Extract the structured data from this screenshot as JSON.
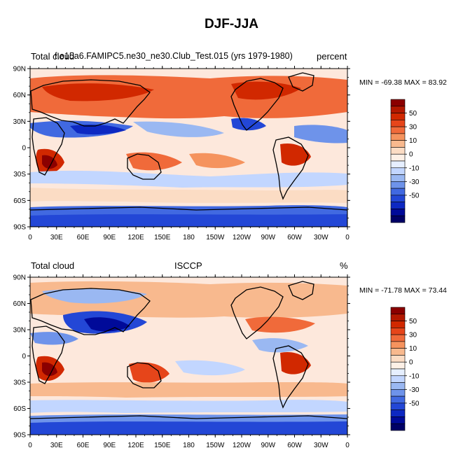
{
  "figure_title": "DJF-JJA",
  "panels": [
    {
      "left_label": "Total cloud",
      "center_label": "f.e15a6.FAMIPC5.ne30_ne30.Club_Test.015 (yrs 1979-1980)",
      "right_label": "percent",
      "min_max_text": "MIN = -69.38 MAX =  83.92"
    },
    {
      "left_label": "Total cloud",
      "center_label": "ISCCP",
      "right_label": "%",
      "min_max_text": "MIN = -71.78 MAX =  73.44"
    }
  ],
  "axes": {
    "lat_ticks": [
      "90N",
      "60N",
      "30N",
      "0",
      "30S",
      "60S",
      "90S"
    ],
    "lon_ticks": [
      "0",
      "30E",
      "60E",
      "90E",
      "120E",
      "150E",
      "180",
      "150W",
      "120W",
      "90W",
      "60W",
      "30W",
      "0"
    ]
  },
  "colorbar": {
    "labels": [
      "50",
      "30",
      "10",
      "0",
      "-10",
      "-30",
      "-50"
    ],
    "colors": [
      "#8b0000",
      "#b31800",
      "#d12800",
      "#e6451a",
      "#f06a3a",
      "#f5935e",
      "#f8b98e",
      "#fbdcc4",
      "#fdf0e6",
      "#e6efff",
      "#c2d6ff",
      "#9ab8f2",
      "#6e93ea",
      "#4169e1",
      "#2347d6",
      "#0d28c2",
      "#000a99",
      "#000066"
    ]
  }
}
